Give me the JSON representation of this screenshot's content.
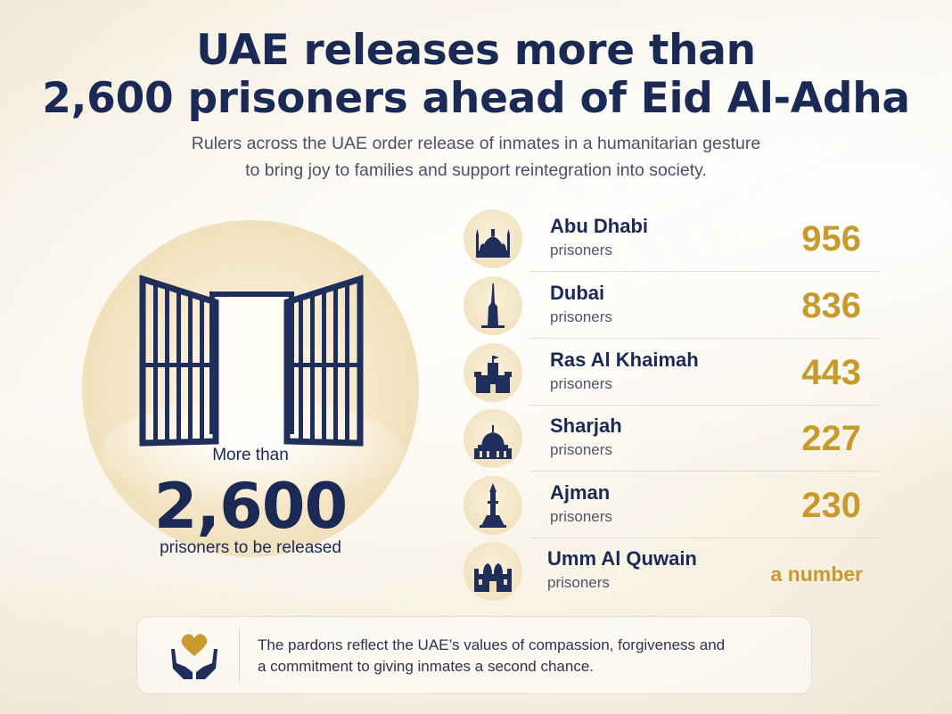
{
  "header": {
    "title_line1": "UAE releases more than",
    "title_line2": "2,600 prisoners ahead of Eid Al-Adha",
    "subtitle_line1": "Rulers across the UAE order release of inmates in a humanitarian gesture",
    "subtitle_line2": "to bring joy to families and support reintegration into society."
  },
  "hero": {
    "lead": "More than",
    "number": "2,600",
    "caption": "prisoners to be released"
  },
  "emirates": [
    {
      "name": "Abu Dhabi",
      "sub": "prisoners",
      "count": "956",
      "icon": "mosque-icon"
    },
    {
      "name": "Dubai",
      "sub": "prisoners",
      "count": "836",
      "icon": "burj-khalifa-icon"
    },
    {
      "name": "Ras Al Khaimah",
      "sub": "prisoners",
      "count": "443",
      "icon": "fort-icon"
    },
    {
      "name": "Sharjah",
      "sub": "prisoners",
      "count": "227",
      "icon": "domed-building-icon"
    },
    {
      "name": "Ajman",
      "sub": "prisoners",
      "count": "230",
      "icon": "minaret-icon"
    },
    {
      "name": "Umm Al Quwain",
      "sub": "prisoners",
      "count": "a number",
      "icon": "fortress-icon"
    }
  ],
  "footer": {
    "line1": "The pardons reflect the UAE’s values of compassion, forgiveness and",
    "line2": "a commitment to giving inmates a second chance.",
    "icon": "heart-in-hands-icon"
  },
  "colors": {
    "navy": "#1b2a55",
    "gold": "#c79a2c",
    "background": "#f8f2e6"
  }
}
